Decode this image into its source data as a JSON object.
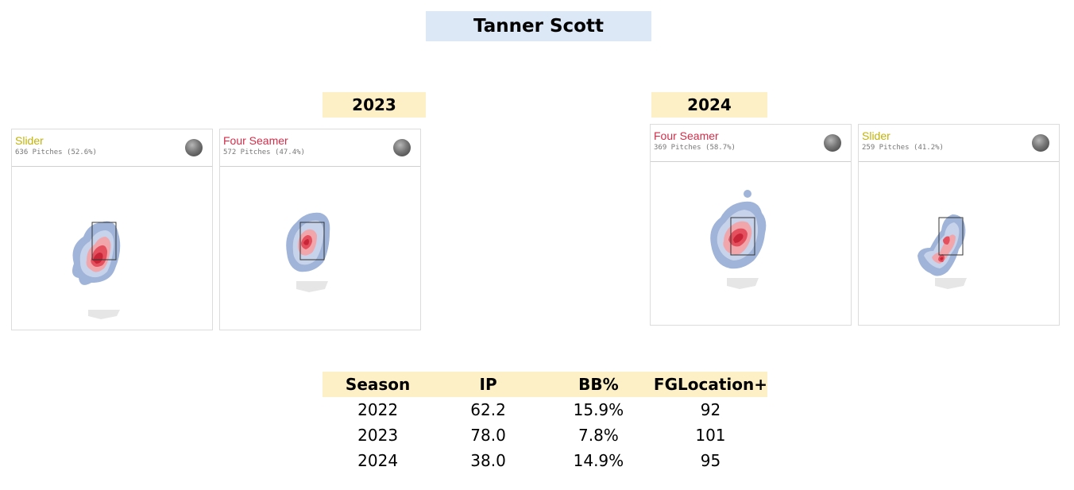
{
  "title": "Tanner Scott",
  "colors": {
    "slider": "#c2b308",
    "four_seamer": "#d22d49",
    "title_bg": "#dde8f6",
    "year_bg": "#fdf0c7"
  },
  "years": {
    "y2023": "2023",
    "y2024": "2024"
  },
  "cards": [
    {
      "name": "Slider",
      "count": "636 Pitches (52.6%)",
      "icon": "baseball-icon"
    },
    {
      "name": "Four Seamer",
      "count": "572 Pitches (47.4%)",
      "icon": "baseball-icon"
    },
    {
      "name": "Four Seamer",
      "count": "369 Pitches (58.7%)",
      "icon": "baseball-icon"
    },
    {
      "name": "Slider",
      "count": "259 Pitches (41.2%)",
      "icon": "baseball-icon"
    }
  ],
  "table": {
    "headers": [
      "Season",
      "IP",
      "BB%",
      "FGLocation+"
    ],
    "rows": [
      [
        "2022",
        "62.2",
        "15.9%",
        "92"
      ],
      [
        "2023",
        "78.0",
        "7.8%",
        "101"
      ],
      [
        "2024",
        "38.0",
        "14.9%",
        "95"
      ]
    ]
  }
}
